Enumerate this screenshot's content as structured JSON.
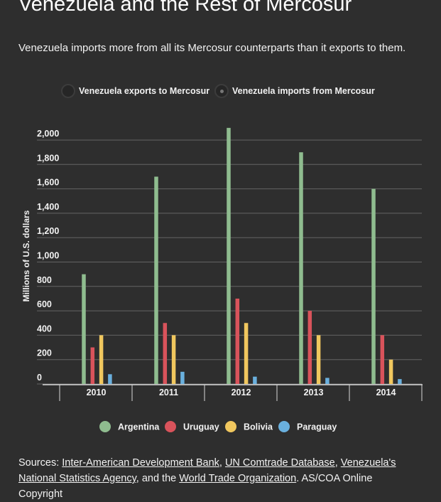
{
  "title": "Venezuela and the Rest of Mercosur",
  "subtitle": "Venezuela imports more from all its Mercosur counterparts than it exports to them.",
  "toggles": [
    {
      "label": "Venezuela exports to Mercosur",
      "selected": false
    },
    {
      "label": "Venezuela imports from Mercosur",
      "selected": true
    }
  ],
  "chart_data": {
    "type": "bar",
    "ylabel": "Millions of U.S. dollars",
    "ylim": [
      0,
      2100
    ],
    "yticks": [
      0,
      200,
      400,
      600,
      800,
      1000,
      1200,
      1400,
      1600,
      1800,
      2000
    ],
    "ytick_labels": [
      "0",
      "200",
      "400",
      "600",
      "800",
      "1,000",
      "1,200",
      "1,400",
      "1,600",
      "1,800",
      "2,000"
    ],
    "categories": [
      "2010",
      "2011",
      "2012",
      "2013",
      "2014"
    ],
    "series": [
      {
        "name": "Argentina",
        "color": "#8fbc8f",
        "values": [
          900,
          1700,
          2100,
          1900,
          1600
        ]
      },
      {
        "name": "Uruguay",
        "color": "#d9535b",
        "values": [
          300,
          500,
          700,
          600,
          400
        ]
      },
      {
        "name": "Bolivia",
        "color": "#f0c75e",
        "values": [
          400,
          400,
          500,
          400,
          200
        ]
      },
      {
        "name": "Paraguay",
        "color": "#6ab0de",
        "values": [
          80,
          100,
          60,
          50,
          40
        ]
      }
    ],
    "grid": true,
    "legend_position": "bottom"
  },
  "sources": {
    "prefix": "Sources: ",
    "links": [
      "Inter-American Development Bank",
      "UN Comtrade Database",
      "Venezuela's National Statistics Agency",
      "World Trade Organization"
    ],
    "sep1": ", ",
    "sep2": ", ",
    "sep3": ", and the ",
    "suffix": ". AS/COA Online",
    "copyright": "Copyright"
  }
}
